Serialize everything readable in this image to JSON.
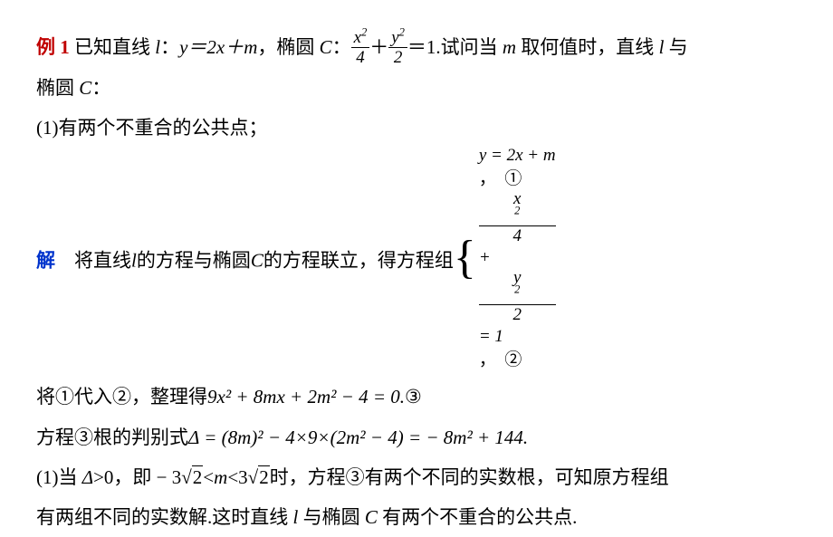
{
  "p1a": "例 1",
  "p1b": "  已知直线 ",
  "p1l": "l",
  "p1c": "：",
  "p1eq": "y＝2x＋m",
  "p1d": "，椭圆 ",
  "p1C": "C",
  "p1e": "：",
  "fr1n": "x",
  "fr1d": "4",
  "p1plus": "＋",
  "fr2n": "y",
  "fr2d": "2",
  "p1f": "＝1.试问当 ",
  "p1m": "m",
  "p1g": " 取何值时，直线 ",
  "p1l2": "l",
  "p1h": " 与",
  "p2a": " 椭圆 ",
  "p2C": "C",
  "p2b": "：",
  "p3": "(1)有两个不重合的公共点；",
  "p4a": "解",
  "p4b": "　将直线",
  "p4l": "l",
  "p4c": "的方程与椭圆",
  "p4C": "C",
  "p4d": "的方程联立，得方程组",
  "sys1a": "y = 2x + m",
  "sys1b": "，　①",
  "sys2fr1n": "x",
  "sys2fr1d": "4",
  "sys2plus": " + ",
  "sys2fr2n": "y",
  "sys2fr2d": "2",
  "sys2eq": " = 1",
  "sys2b": "，　②",
  "p5a": "将①代入②，整理得",
  "p5eq": "9x² + 8mx + 2m² − 4 = 0.",
  "p5b": "③",
  "p6a": "方程③根的判别式",
  "p6eq": "Δ = (8m)² − 4×9×(2m² − 4) = − 8m² + 144.",
  "p7a": "(1)当 ",
  "p7d": "Δ",
  "p7b": ">0，即 − 3",
  "p7rad1": "2",
  "p7c": "<",
  "p7m": "m",
  "p7e": "<3",
  "p7rad2": "2",
  "p7f": "时，方程③有两个不同的实数根，可知原方程组",
  "p8a": "有两组不同的实数解.这时直线 ",
  "p8l": "l",
  "p8b": " 与椭圆 ",
  "p8C": "C",
  "p8c": " 有两个不重合的公共点."
}
